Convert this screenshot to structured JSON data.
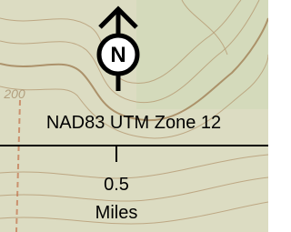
{
  "contour_label": "200",
  "north_letter": "N",
  "datum_label": "NAD83 UTM Zone 12",
  "scale": {
    "distance": "0.5",
    "unit": "Miles"
  }
}
